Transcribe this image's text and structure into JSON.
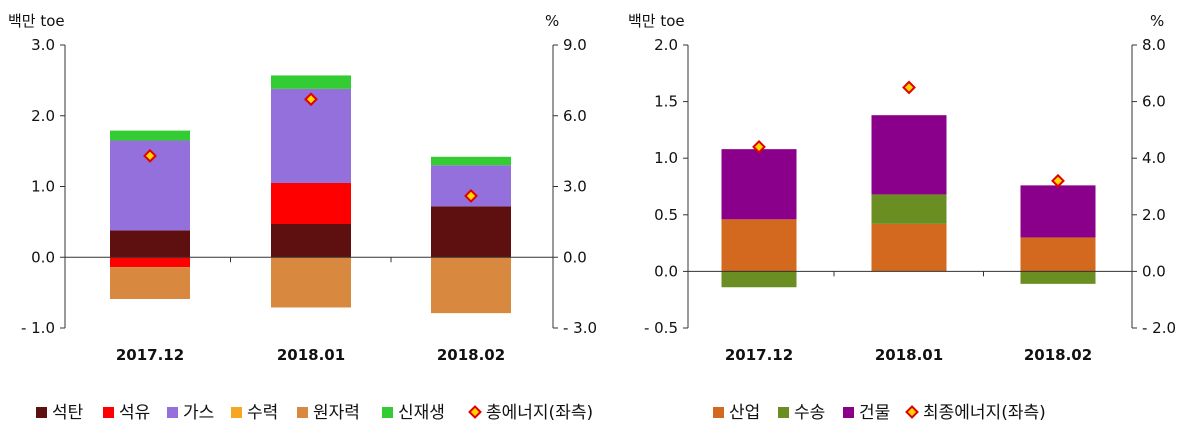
{
  "chart_data": [
    {
      "type": "bar",
      "stacked": true,
      "left_unit": "백만 toe",
      "right_unit": "%",
      "categories": [
        "2017.12",
        "2018.01",
        "2018.02"
      ],
      "y_left": {
        "min": -1.0,
        "max": 3.0,
        "ticks": [
          "- 1.0",
          "0.0",
          "1.0",
          "2.0",
          "3.0"
        ],
        "tick_values": [
          -1.0,
          0.0,
          1.0,
          2.0,
          3.0
        ]
      },
      "y_right": {
        "min": -3.0,
        "max": 9.0,
        "ticks": [
          "- 3.0",
          "0.0",
          "3.0",
          "6.0",
          "9.0"
        ],
        "tick_values": [
          -3.0,
          0.0,
          3.0,
          6.0,
          9.0
        ]
      },
      "series": [
        {
          "name": "석탄",
          "color": "#5e1010",
          "values": [
            0.38,
            0.47,
            0.72
          ]
        },
        {
          "name": "석유",
          "color": "#ff0000",
          "values": [
            -0.14,
            0.58,
            0.0
          ]
        },
        {
          "name": "가스",
          "color": "#9370db",
          "values": [
            1.27,
            1.33,
            0.58
          ]
        },
        {
          "name": "수력",
          "color": "#f5a623",
          "values": [
            0.0,
            0.0,
            0.0
          ]
        },
        {
          "name": "원자력",
          "color": "#d98840",
          "values": [
            -0.45,
            -0.71,
            -0.79
          ]
        },
        {
          "name": "신재생",
          "color": "#33cc33",
          "values": [
            0.14,
            0.19,
            0.12
          ]
        }
      ],
      "line_series": {
        "name": "총에너지(좌측)",
        "axis": "right",
        "values": [
          4.3,
          6.7,
          2.6
        ]
      },
      "legend": "bottom"
    },
    {
      "type": "bar",
      "stacked": true,
      "left_unit": "백만 toe",
      "right_unit": "%",
      "categories": [
        "2017.12",
        "2018.01",
        "2018.02"
      ],
      "y_left": {
        "min": -0.5,
        "max": 2.0,
        "ticks": [
          "- 0.5",
          "0.0",
          "0.5",
          "1.0",
          "1.5",
          "2.0"
        ],
        "tick_values": [
          -0.5,
          0.0,
          0.5,
          1.0,
          1.5,
          2.0
        ]
      },
      "y_right": {
        "min": -2.0,
        "max": 8.0,
        "ticks": [
          "- 2.0",
          "0.0",
          "2.0",
          "4.0",
          "6.0",
          "8.0"
        ],
        "tick_values": [
          -2.0,
          0.0,
          2.0,
          4.0,
          6.0,
          8.0
        ]
      },
      "series": [
        {
          "name": "산업",
          "color": "#d2691e",
          "values": [
            0.46,
            0.42,
            0.3
          ]
        },
        {
          "name": "수송",
          "color": "#6b8e23",
          "values": [
            -0.14,
            0.26,
            -0.11
          ]
        },
        {
          "name": "건물",
          "color": "#8b008b",
          "values": [
            0.62,
            0.7,
            0.46
          ]
        }
      ],
      "line_series": {
        "name": "최종에너지(좌측)",
        "axis": "right",
        "values": [
          4.4,
          6.5,
          3.2
        ]
      },
      "legend": "bottom"
    }
  ]
}
